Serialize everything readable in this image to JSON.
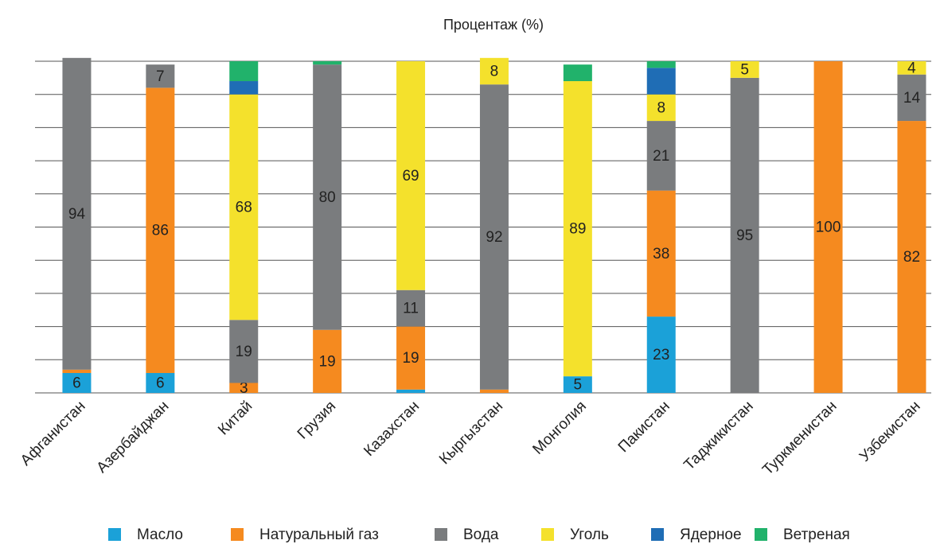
{
  "chart_data": {
    "type": "stacked_bar",
    "title": "Процентаж (%)",
    "categories": [
      "Афганистан",
      "Азербайджан",
      "Китай",
      "Грузия",
      "Казахстан",
      "Кыргызстан",
      "Монголия",
      "Пакистан",
      "Таджикистан",
      "Туркменистан",
      "Узбекистан"
    ],
    "series": [
      {
        "name": "Масло",
        "color": "#1ba1d8",
        "values": [
          6,
          6,
          null,
          null,
          1,
          null,
          5,
          23,
          null,
          null,
          null
        ]
      },
      {
        "name": "Натуральный газ",
        "color": "#f58a1f",
        "values": [
          1,
          86,
          3,
          19,
          19,
          1,
          null,
          38,
          null,
          100,
          82
        ]
      },
      {
        "name": "Вода",
        "color": "#7a7c7e",
        "values": [
          94,
          7,
          19,
          80,
          11,
          92,
          null,
          21,
          95,
          null,
          14
        ]
      },
      {
        "name": "Уголь",
        "color": "#f4e12c",
        "values": [
          null,
          null,
          68,
          null,
          69,
          8,
          89,
          8,
          5,
          null,
          4
        ]
      },
      {
        "name": "Ядерное",
        "color": "#1f6db5",
        "values": [
          null,
          null,
          4,
          null,
          null,
          null,
          null,
          8,
          null,
          null,
          null
        ]
      },
      {
        "name": "Ветреная",
        "color": "#21b26b",
        "values": [
          null,
          null,
          6,
          1,
          null,
          null,
          5,
          2,
          null,
          null,
          null
        ]
      }
    ],
    "ylim": [
      0,
      100
    ],
    "yticks": [
      0,
      10,
      20,
      30,
      40,
      50,
      60,
      70,
      80,
      90,
      100
    ],
    "grid": true,
    "legend": "bottom"
  }
}
